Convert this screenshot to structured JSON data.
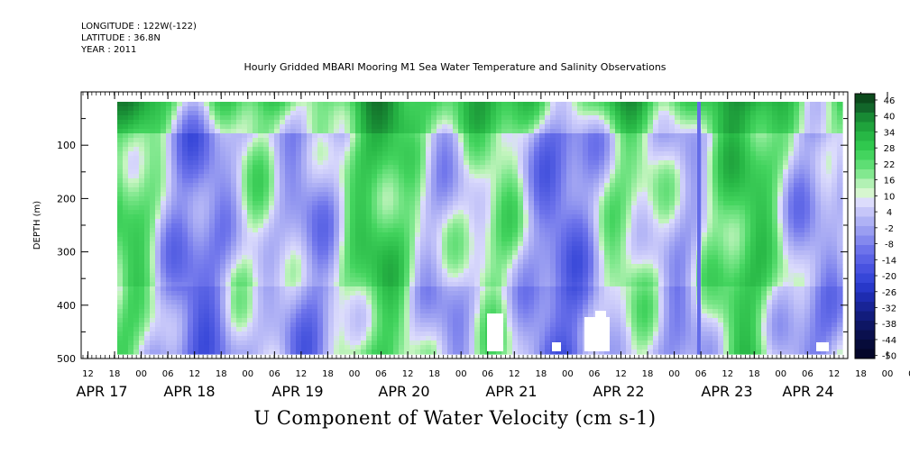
{
  "header": {
    "longitude": "LONGITUDE : 122W(-122)",
    "latitude": "LATITUDE : 36.8N",
    "year": "YEAR : 2011"
  },
  "chart_data": {
    "type": "heatmap",
    "title": "Hourly Gridded MBARI Mooring M1 Sea Water Temperature and Salinity Observations",
    "xlabel": "U Component of Water Velocity (cm s-1)",
    "ylabel": "DEPTH (m)",
    "ylim": [
      500,
      0
    ],
    "y_ticks": [
      "100",
      "200",
      "300",
      "400",
      "500"
    ],
    "x_hour_ticks": [
      "12",
      "18",
      "00",
      "06",
      "12",
      "18",
      "00",
      "06",
      "12",
      "18",
      "00",
      "06",
      "12",
      "18",
      "00",
      "06",
      "12",
      "18",
      "00",
      "06",
      "12",
      "18",
      "00",
      "06",
      "12",
      "18",
      "00",
      "06",
      "12",
      "18",
      "00",
      "06",
      "12"
    ],
    "x_day_labels": [
      "APR 17",
      "APR 18",
      "APR 19",
      "APR 20",
      "APR 21",
      "APR 22",
      "APR 23",
      "APR 24"
    ],
    "colorbar_labels": [
      "46",
      "40",
      "34",
      "28",
      "22",
      "16",
      "10",
      "4",
      "-2",
      "-8",
      "-14",
      "-20",
      "-26",
      "-32",
      "-38",
      "-44",
      "-50"
    ],
    "colorbar_colors": [
      "#0c4a1c",
      "#12662a",
      "#188a34",
      "#1fa33c",
      "#27b745",
      "#30c84e",
      "#43d45e",
      "#5ede74",
      "#82e88f",
      "#b2f1b4",
      "#d6f6cf",
      "#dcdcfc",
      "#c6c6f9",
      "#afb2f5",
      "#9a9ef1",
      "#8489ee",
      "#6d73eb",
      "#5a62e6",
      "#4852e0",
      "#3646d8",
      "#2838c9",
      "#1e2cb0",
      "#182496",
      "#121c7c",
      "#0e1664",
      "#0a104e",
      "#060b3a",
      "#04062a"
    ],
    "colormap_stops": [
      {
        "v": -50,
        "c": "#04062a"
      },
      {
        "v": -38,
        "c": "#182496"
      },
      {
        "v": -26,
        "c": "#3646d8"
      },
      {
        "v": -14,
        "c": "#6d73eb"
      },
      {
        "v": -8,
        "c": "#9a9ef1"
      },
      {
        "v": -2,
        "c": "#c6c6f9"
      },
      {
        "v": 1,
        "c": "#dcdcfc"
      },
      {
        "v": 2,
        "c": "#c8f5c2"
      },
      {
        "v": 6,
        "c": "#82e88f"
      },
      {
        "v": 12,
        "c": "#43d45e"
      },
      {
        "v": 20,
        "c": "#27b745"
      },
      {
        "v": 30,
        "c": "#188a34"
      },
      {
        "v": 46,
        "c": "#0c4a1c"
      }
    ]
  }
}
